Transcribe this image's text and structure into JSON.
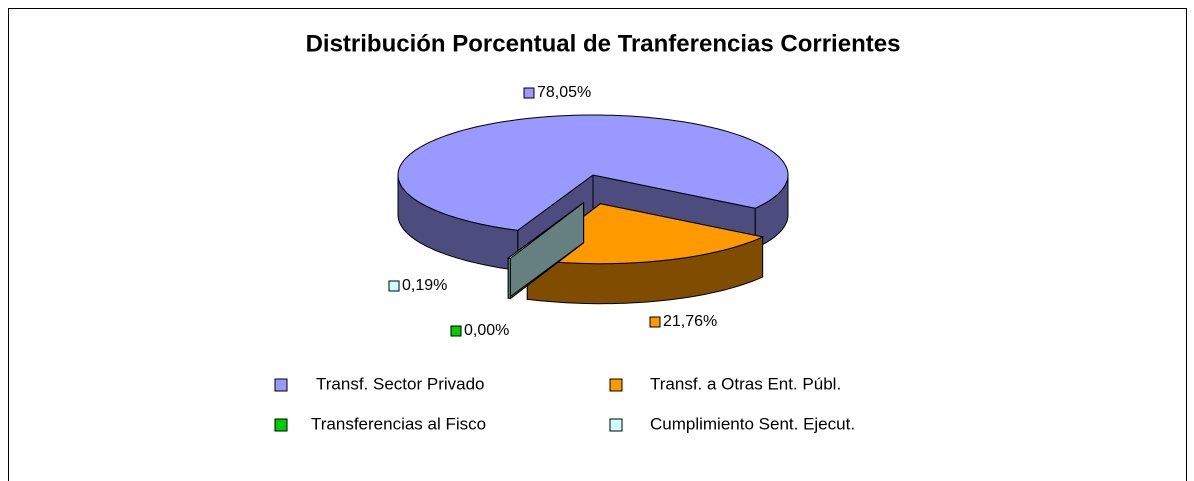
{
  "chart_data": {
    "type": "pie3d",
    "title": "Distribución Porcentual de Tranferencias Corrientes",
    "categories": [
      "Transf. Sector Privado",
      "Transf. a Otras Ent. Públ.",
      "Transferencias al Fisco",
      "Cumplimiento Sent. Ejecut."
    ],
    "values": [
      78.05,
      21.76,
      0.0,
      0.19
    ],
    "value_labels": [
      "78,05%",
      "21,76%",
      "0,00%",
      "0,19%"
    ],
    "colors": [
      "#9999ff",
      "#ff9900",
      "#00cc00",
      "#ccffff"
    ],
    "legend": "bottom"
  }
}
